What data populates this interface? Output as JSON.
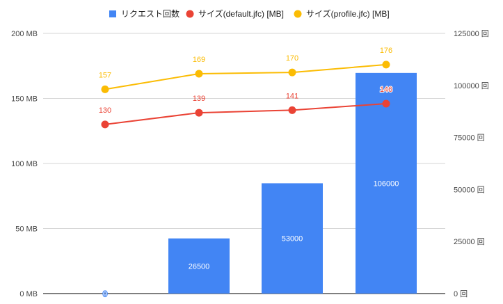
{
  "chart_data": {
    "type": "bar",
    "title": "",
    "categories": [
      "",
      "",
      "",
      ""
    ],
    "legend_position": "top",
    "grid": true,
    "series": [
      {
        "name": "リクエスト回数",
        "type": "bar",
        "axis": "right",
        "color": "#4285F4",
        "values": [
          0,
          26500,
          53000,
          106000
        ],
        "labels": [
          "0",
          "26500",
          "53000",
          "106000"
        ]
      },
      {
        "name": "サイズ(default.jfc) [MB]",
        "type": "line",
        "axis": "left",
        "color": "#EA4335",
        "values": [
          130,
          139,
          141,
          146
        ],
        "labels": [
          "130",
          "139",
          "141",
          "146"
        ]
      },
      {
        "name": "サイズ(profile.jfc) [MB]",
        "type": "line",
        "axis": "left",
        "color": "#FBBC04",
        "values": [
          157,
          169,
          170,
          176
        ],
        "labels": [
          "157",
          "169",
          "170",
          "176"
        ]
      }
    ],
    "y_left": {
      "min": 0,
      "max": 200,
      "ticks": [
        0,
        50,
        100,
        150,
        200
      ],
      "tick_labels": [
        "0 MB",
        "50 MB",
        "100 MB",
        "150 MB",
        "200 MB"
      ]
    },
    "y_right": {
      "min": 0,
      "max": 125000,
      "ticks": [
        0,
        25000,
        50000,
        75000,
        100000,
        125000
      ],
      "tick_labels": [
        "0 回",
        "25000 回",
        "50000 回",
        "75000 回",
        "100000 回",
        "125000 回"
      ]
    }
  }
}
